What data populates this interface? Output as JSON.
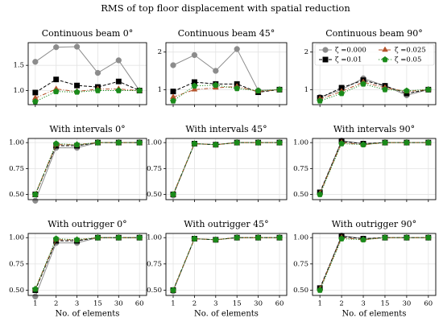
{
  "title": "RMS of top floor displacement with spatial reduction",
  "chart_data": [
    {
      "type": "line",
      "title": "Continuous beam 0°",
      "categories": [
        null,
        null,
        null,
        null,
        null,
        null
      ],
      "ylim": [
        0.72,
        1.95
      ],
      "yticks": [
        {
          "value": 1,
          "label": "1.0"
        },
        1.5
      ],
      "grid": true,
      "series": [
        {
          "color": "#8c8c8c",
          "marker": "circle",
          "linestyle": "solid",
          "values": [
            1.57,
            1.86,
            1.87,
            1.35,
            1.6,
            1.0
          ]
        },
        {
          "color": "#000000",
          "marker": "square",
          "linestyle": "dashed",
          "values": [
            0.96,
            1.22,
            1.1,
            1.07,
            1.18,
            1.0
          ]
        },
        {
          "color": "#b5532b",
          "marker": "triangle",
          "linestyle": "dashdot",
          "values": [
            0.85,
            1.03,
            0.98,
            1.03,
            1.03,
            1.0
          ]
        },
        {
          "color": "#1a8a1a",
          "marker": "pentagon",
          "linestyle": "dotted",
          "values": [
            0.78,
            0.98,
            0.97,
            1.0,
            1.0,
            1.0
          ]
        }
      ]
    },
    {
      "type": "line",
      "title": "Continuous beam 45°",
      "categories": [
        null,
        null,
        null,
        null,
        null,
        null
      ],
      "ylim": [
        0.6,
        2.25
      ],
      "yticks": [
        1,
        2
      ],
      "grid": true,
      "series": [
        {
          "color": "#8c8c8c",
          "marker": "circle",
          "linestyle": "solid",
          "values": [
            1.65,
            1.92,
            1.5,
            2.08,
            0.98,
            1.0
          ]
        },
        {
          "color": "#000000",
          "marker": "square",
          "linestyle": "dashed",
          "values": [
            0.95,
            1.2,
            1.15,
            1.15,
            0.93,
            1.0
          ]
        },
        {
          "color": "#b5532b",
          "marker": "triangle",
          "linestyle": "dashdot",
          "values": [
            0.8,
            1.0,
            1.05,
            1.08,
            0.95,
            1.0
          ]
        },
        {
          "color": "#1a8a1a",
          "marker": "pentagon",
          "linestyle": "dotted",
          "values": [
            0.7,
            1.1,
            1.12,
            1.03,
            0.97,
            1.0
          ]
        }
      ]
    },
    {
      "type": "line",
      "title": "Continuous beam 90°",
      "categories": [
        null,
        null,
        null,
        null,
        null,
        null
      ],
      "ylim": [
        0.6,
        2.25
      ],
      "yticks": [
        1,
        2
      ],
      "grid": true,
      "legend": "upper right",
      "series": [
        {
          "name": "ζ =0.000",
          "color": "#8c8c8c",
          "marker": "circle",
          "linestyle": "solid",
          "values": [
            0.8,
            1.0,
            1.3,
            1.1,
            0.85,
            1.0
          ]
        },
        {
          "name": "ζ =0.01",
          "color": "#000000",
          "marker": "square",
          "linestyle": "dashed",
          "values": [
            0.78,
            1.05,
            1.25,
            1.1,
            0.9,
            1.0
          ]
        },
        {
          "name": "ζ =0.025",
          "color": "#b5532b",
          "marker": "triangle",
          "linestyle": "dashdot",
          "values": [
            0.75,
            0.95,
            1.2,
            1.05,
            0.95,
            1.0
          ]
        },
        {
          "name": "ζ =0.05",
          "color": "#1a8a1a",
          "marker": "pentagon",
          "linestyle": "dotted",
          "values": [
            0.7,
            0.9,
            1.15,
            1.0,
            0.97,
            1.0
          ]
        }
      ]
    },
    {
      "type": "line",
      "title": "With intervals 0°",
      "categories": [
        null,
        null,
        null,
        null,
        null,
        null
      ],
      "ylim": [
        0.45,
        1.04
      ],
      "yticks": [
        {
          "value": 0.5,
          "label": "0.50"
        },
        0.75,
        {
          "value": 1,
          "label": "1.00"
        }
      ],
      "grid": true,
      "series": [
        {
          "color": "#8c8c8c",
          "marker": "circle",
          "linestyle": "solid",
          "values": [
            0.44,
            0.95,
            0.95,
            1.0,
            1.0,
            1.0
          ]
        },
        {
          "color": "#000000",
          "marker": "square",
          "linestyle": "dashed",
          "values": [
            0.5,
            0.97,
            0.97,
            1.0,
            1.0,
            1.0
          ]
        },
        {
          "color": "#b5532b",
          "marker": "triangle",
          "linestyle": "dashdot",
          "values": [
            0.5,
            0.98,
            0.98,
            1.0,
            1.0,
            1.0
          ]
        },
        {
          "color": "#1a8a1a",
          "marker": "pentagon",
          "linestyle": "dotted",
          "values": [
            0.5,
            0.99,
            0.98,
            1.0,
            1.0,
            1.0
          ]
        }
      ]
    },
    {
      "type": "line",
      "title": "With intervals 45°",
      "categories": [
        null,
        null,
        null,
        null,
        null,
        null
      ],
      "ylim": [
        0.45,
        1.04
      ],
      "yticks": [
        {
          "value": 0.5,
          "label": "0.50"
        },
        0.75,
        {
          "value": 1,
          "label": "1.00"
        }
      ],
      "grid": true,
      "series": [
        {
          "color": "#8c8c8c",
          "marker": "circle",
          "linestyle": "solid",
          "values": [
            0.49,
            0.99,
            0.98,
            1.0,
            1.0,
            1.0
          ]
        },
        {
          "color": "#000000",
          "marker": "square",
          "linestyle": "dashed",
          "values": [
            0.5,
            0.99,
            0.98,
            1.0,
            1.0,
            1.0
          ]
        },
        {
          "color": "#b5532b",
          "marker": "triangle",
          "linestyle": "dashdot",
          "values": [
            0.5,
            0.99,
            0.98,
            1.0,
            1.0,
            1.0
          ]
        },
        {
          "color": "#1a8a1a",
          "marker": "pentagon",
          "linestyle": "dotted",
          "values": [
            0.5,
            0.99,
            0.98,
            1.0,
            1.0,
            1.0
          ]
        }
      ]
    },
    {
      "type": "line",
      "title": "With intervals 90°",
      "categories": [
        null,
        null,
        null,
        null,
        null,
        null
      ],
      "ylim": [
        0.45,
        1.04
      ],
      "yticks": [
        {
          "value": 0.5,
          "label": "0.50"
        },
        0.75,
        {
          "value": 1,
          "label": "1.00"
        }
      ],
      "grid": true,
      "series": [
        {
          "color": "#8c8c8c",
          "marker": "circle",
          "linestyle": "solid",
          "values": [
            0.51,
            1.02,
            0.99,
            1.0,
            1.0,
            1.0
          ]
        },
        {
          "color": "#000000",
          "marker": "square",
          "linestyle": "dashed",
          "values": [
            0.52,
            1.01,
            0.99,
            1.0,
            1.0,
            1.0
          ]
        },
        {
          "color": "#b5532b",
          "marker": "triangle",
          "linestyle": "dashdot",
          "values": [
            0.51,
            1.0,
            0.98,
            1.0,
            1.0,
            1.0
          ]
        },
        {
          "color": "#1a8a1a",
          "marker": "pentagon",
          "linestyle": "dotted",
          "values": [
            0.5,
            0.99,
            0.98,
            1.0,
            1.0,
            1.0
          ]
        }
      ]
    },
    {
      "type": "line",
      "title": "With outrigger 0°",
      "categories": [
        "1",
        "2",
        "3",
        "15",
        "30",
        "60"
      ],
      "xlabel": "No. of elements",
      "ylim": [
        0.45,
        1.04
      ],
      "yticks": [
        {
          "value": 0.5,
          "label": "0.50"
        },
        0.75,
        {
          "value": 1,
          "label": "1.00"
        }
      ],
      "grid": true,
      "series": [
        {
          "color": "#8c8c8c",
          "marker": "circle",
          "linestyle": "solid",
          "values": [
            0.44,
            0.95,
            0.95,
            1.0,
            1.0,
            1.0
          ]
        },
        {
          "color": "#000000",
          "marker": "square",
          "linestyle": "dashed",
          "values": [
            0.5,
            0.97,
            0.97,
            1.0,
            1.0,
            1.0
          ]
        },
        {
          "color": "#b5532b",
          "marker": "triangle",
          "linestyle": "dashdot",
          "values": [
            0.51,
            0.98,
            0.98,
            1.0,
            1.0,
            1.0
          ]
        },
        {
          "color": "#1a8a1a",
          "marker": "pentagon",
          "linestyle": "dotted",
          "values": [
            0.51,
            0.99,
            0.98,
            1.0,
            1.0,
            1.0
          ]
        }
      ]
    },
    {
      "type": "line",
      "title": "With outrigger 45°",
      "categories": [
        "1",
        "2",
        "3",
        "15",
        "30",
        "60"
      ],
      "xlabel": "No. of elements",
      "ylim": [
        0.45,
        1.04
      ],
      "yticks": [
        {
          "value": 0.5,
          "label": "0.50"
        },
        0.75,
        {
          "value": 1,
          "label": "1.00"
        }
      ],
      "grid": true,
      "series": [
        {
          "color": "#8c8c8c",
          "marker": "circle",
          "linestyle": "solid",
          "values": [
            0.49,
            0.99,
            0.98,
            1.0,
            1.0,
            1.0
          ]
        },
        {
          "color": "#000000",
          "marker": "square",
          "linestyle": "dashed",
          "values": [
            0.5,
            0.99,
            0.98,
            1.0,
            1.0,
            1.0
          ]
        },
        {
          "color": "#b5532b",
          "marker": "triangle",
          "linestyle": "dashdot",
          "values": [
            0.5,
            0.99,
            0.98,
            1.0,
            1.0,
            1.0
          ]
        },
        {
          "color": "#1a8a1a",
          "marker": "pentagon",
          "linestyle": "dotted",
          "values": [
            0.5,
            0.99,
            0.98,
            1.0,
            1.0,
            1.0
          ]
        }
      ]
    },
    {
      "type": "line",
      "title": "With outrigger 90°",
      "categories": [
        "1",
        "2",
        "3",
        "15",
        "30",
        "60"
      ],
      "xlabel": "No. of elements",
      "ylim": [
        0.45,
        1.04
      ],
      "yticks": [
        {
          "value": 0.5,
          "label": "0.50"
        },
        0.75,
        {
          "value": 1,
          "label": "1.00"
        }
      ],
      "grid": true,
      "series": [
        {
          "color": "#8c8c8c",
          "marker": "circle",
          "linestyle": "solid",
          "values": [
            0.51,
            1.02,
            0.99,
            1.0,
            1.0,
            1.0
          ]
        },
        {
          "color": "#000000",
          "marker": "square",
          "linestyle": "dashed",
          "values": [
            0.52,
            1.01,
            0.99,
            1.0,
            1.0,
            1.0
          ]
        },
        {
          "color": "#b5532b",
          "marker": "triangle",
          "linestyle": "dashdot",
          "values": [
            0.51,
            1.0,
            0.98,
            1.0,
            1.0,
            1.0
          ]
        },
        {
          "color": "#1a8a1a",
          "marker": "pentagon",
          "linestyle": "dotted",
          "values": [
            0.5,
            0.99,
            0.98,
            1.0,
            1.0,
            1.0
          ]
        }
      ]
    }
  ]
}
